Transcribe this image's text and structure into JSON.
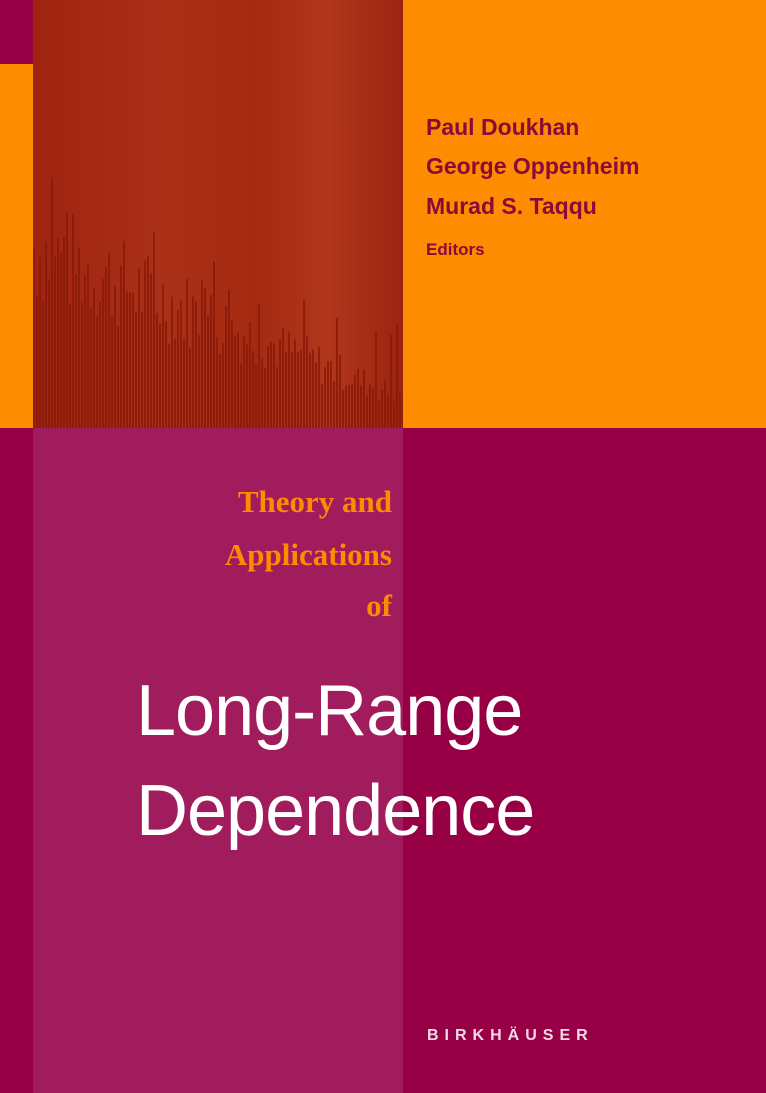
{
  "editors": [
    "Paul Doukhan",
    "George Oppenheim",
    "Murad S. Taqqu"
  ],
  "editors_label": "Editors",
  "subtitle_lines": [
    "Theory and",
    "Applications",
    "of"
  ],
  "title_lines": [
    "Long-Range",
    "Dependence"
  ],
  "publisher": "BIRKHÄUSER",
  "colors": {
    "magenta": "#980046",
    "magenta_light": "#a11c5c",
    "orange": "#fd8c00",
    "photo_red": "#a42a12"
  }
}
